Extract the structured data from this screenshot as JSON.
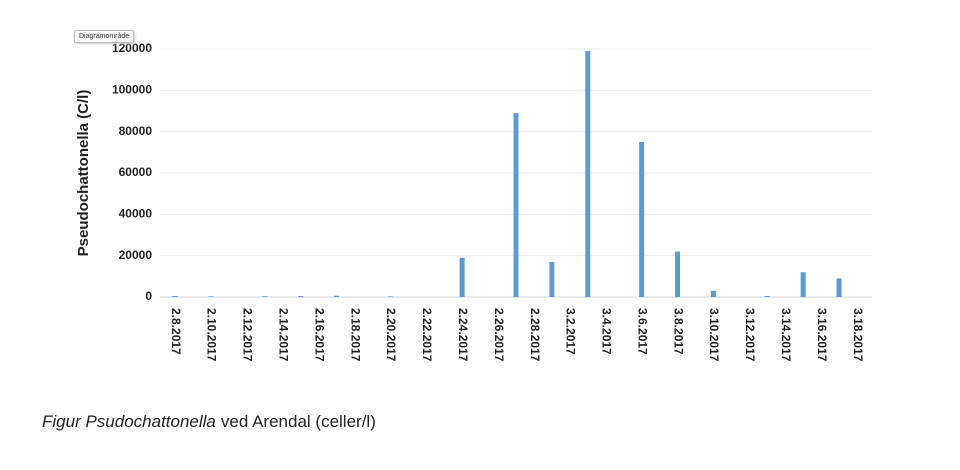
{
  "tooltip": "Diagramområde",
  "chart_data": {
    "type": "bar",
    "y_label": "Pseudochattonella (C/l)",
    "categories": [
      "2.8.2017",
      null,
      "2.10.2017",
      null,
      "2.12.2017",
      null,
      "2.14.2017",
      null,
      "2.16.2017",
      null,
      "2.18.2017",
      null,
      "2.20.2017",
      null,
      "2.22.2017",
      null,
      "2.24.2017",
      null,
      "2.26.2017",
      null,
      "2.28.2017",
      null,
      "3.2.2017",
      null,
      "3.4.2017",
      null,
      "3.6.2017",
      null,
      "3.8.2017",
      null,
      "3.10.2017",
      null,
      "3.12.2017",
      null,
      "3.14.2017",
      null,
      "3.16.2017",
      null,
      "3.18.2017"
    ],
    "values": [
      500,
      null,
      300,
      null,
      null,
      400,
      null,
      500,
      null,
      600,
      null,
      null,
      300,
      null,
      null,
      null,
      19000,
      null,
      null,
      89000,
      null,
      17000,
      null,
      119000,
      null,
      null,
      75000,
      null,
      22000,
      null,
      3000,
      null,
      null,
      500,
      null,
      12000,
      null,
      9000,
      null
    ],
    "color": "#5b9bd5",
    "ylim": [
      0,
      120000
    ],
    "yticks": [
      0,
      20000,
      40000,
      60000,
      80000,
      100000,
      120000
    ],
    "grid": true
  },
  "caption": [
    "Figur Psudochattonella",
    "ved Arendal (celler/l)"
  ]
}
